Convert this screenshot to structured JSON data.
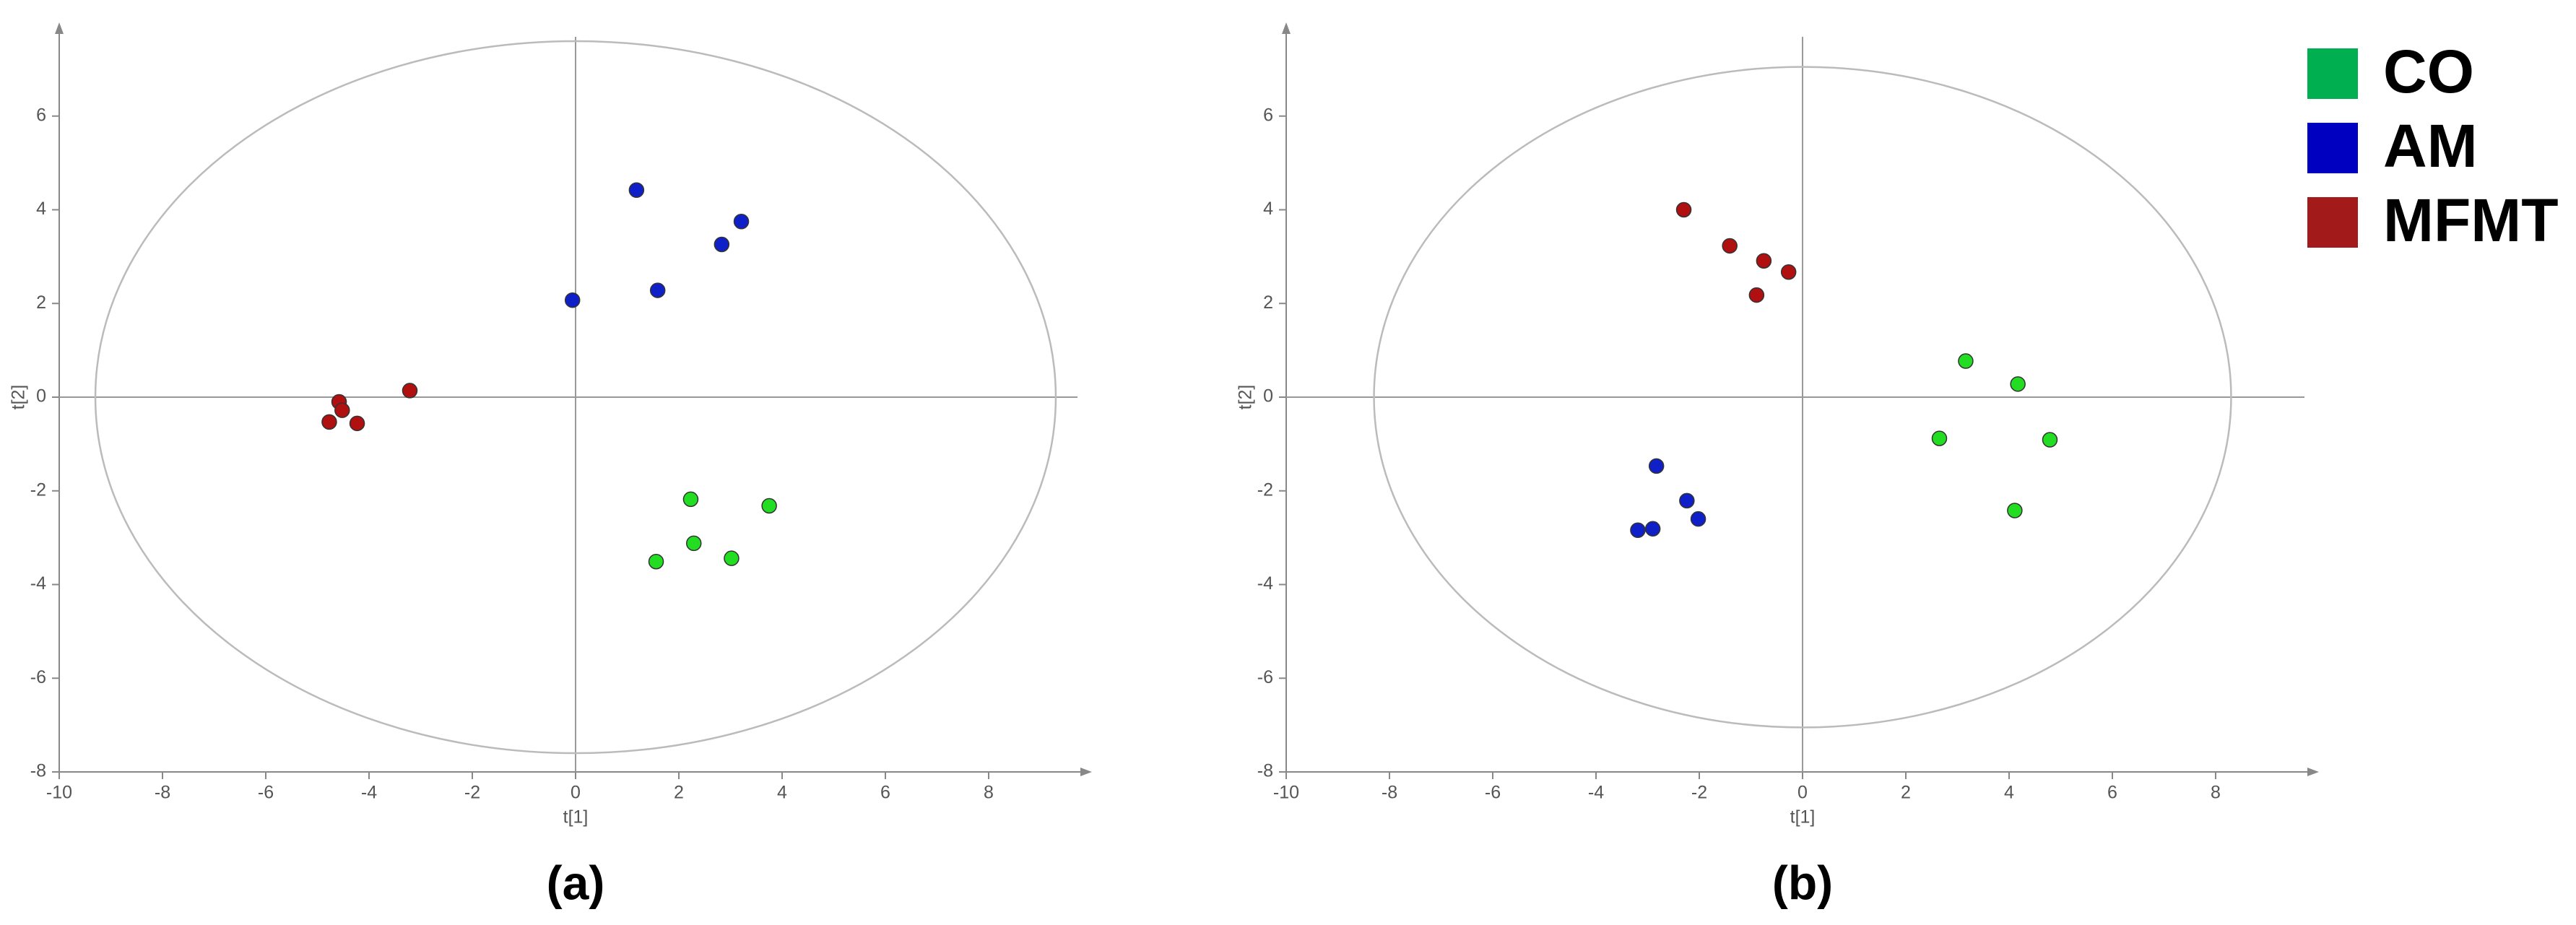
{
  "chart_data": [
    {
      "type": "scatter",
      "caption": "(a)",
      "xlabel": "t[1]",
      "ylabel": "t[2]",
      "xlim": [
        -10,
        10
      ],
      "ylim": [
        -8,
        8
      ],
      "xticks": [
        -10,
        -8,
        -6,
        -4,
        -2,
        0,
        2,
        4,
        6,
        8
      ],
      "yticks": [
        -8,
        -6,
        -4,
        -2,
        0,
        2,
        4,
        6
      ],
      "ellipse": {
        "rx": 9.3,
        "ry": 7.6
      },
      "series": [
        {
          "name": "CO",
          "color": "#22dd22",
          "legend_color": "#00b050",
          "x": [
            2.23,
            3.75,
            2.29,
            3.02,
            1.56
          ],
          "values": [
            -2.18,
            -2.32,
            -3.12,
            -3.44,
            -3.51
          ]
        },
        {
          "name": "AM",
          "color": "#1020c8",
          "legend_color": "#0000c0",
          "x": [
            1.18,
            3.21,
            2.83,
            1.59,
            -0.06
          ],
          "values": [
            4.42,
            3.75,
            3.26,
            2.28,
            2.07
          ]
        },
        {
          "name": "MFMT",
          "color": "#b01010",
          "legend_color": "#a31a1a",
          "x": [
            -3.21,
            -4.58,
            -4.52,
            -4.77,
            -4.23
          ],
          "values": [
            0.14,
            -0.1,
            -0.28,
            -0.53,
            -0.56
          ]
        }
      ]
    },
    {
      "type": "scatter",
      "caption": "(b)",
      "xlabel": "t[1]",
      "ylabel": "t[2]",
      "xlim": [
        -10,
        10
      ],
      "ylim": [
        -8,
        8
      ],
      "xticks": [
        -10,
        -8,
        -6,
        -4,
        -2,
        0,
        2,
        4,
        6,
        8
      ],
      "yticks": [
        -8,
        -6,
        -4,
        -2,
        0,
        2,
        4,
        6
      ],
      "ellipse": {
        "rx": 8.3,
        "ry": 7.05
      },
      "series": [
        {
          "color": "#22dd22",
          "x": [
            3.16,
            4.17,
            2.65,
            4.79,
            4.11
          ],
          "values": [
            0.77,
            0.28,
            -0.88,
            -0.91,
            -2.42
          ]
        },
        {
          "color": "#1020c8",
          "x": [
            -2.83,
            -2.24,
            -2.02,
            -3.19,
            -2.9
          ],
          "values": [
            -1.47,
            -2.21,
            -2.6,
            -2.84,
            -2.81
          ]
        },
        {
          "color": "#b01010",
          "x": [
            -2.3,
            -1.41,
            -0.75,
            -0.27,
            -0.89
          ],
          "values": [
            4.0,
            3.23,
            2.91,
            2.67,
            2.18
          ]
        }
      ]
    }
  ]
}
